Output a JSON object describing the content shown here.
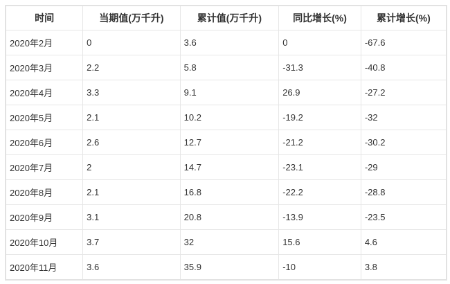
{
  "table": {
    "headers": [
      "时间",
      "当期值(万千升)",
      "累计值(万千升)",
      "同比增长(%)",
      "累计增长(%)"
    ],
    "rows": [
      [
        "2020年2月",
        "0",
        "3.6",
        "0",
        "-67.6"
      ],
      [
        "2020年3月",
        "2.2",
        "5.8",
        "-31.3",
        "-40.8"
      ],
      [
        "2020年4月",
        "3.3",
        "9.1",
        "26.9",
        "-27.2"
      ],
      [
        "2020年5月",
        "2.1",
        "10.2",
        "-19.2",
        "-32"
      ],
      [
        "2020年6月",
        "2.6",
        "12.7",
        "-21.2",
        "-30.2"
      ],
      [
        "2020年7月",
        "2",
        "14.7",
        "-23.1",
        "-29"
      ],
      [
        "2020年8月",
        "2.1",
        "16.8",
        "-22.2",
        "-28.8"
      ],
      [
        "2020年9月",
        "3.1",
        "20.8",
        "-13.9",
        "-23.5"
      ],
      [
        "2020年10月",
        "3.7",
        "32",
        "15.6",
        "4.6"
      ],
      [
        "2020年11月",
        "3.6",
        "35.9",
        "-10",
        "3.8"
      ]
    ]
  }
}
